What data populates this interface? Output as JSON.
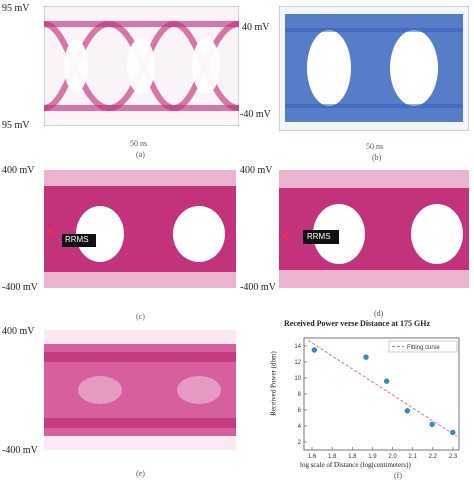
{
  "eye_diagrams": {
    "a": {
      "top_label": "95 mV",
      "bottom_label": "95 mV",
      "time_label": "50 ns",
      "panel_label": "(a)",
      "color": "#c2337b"
    },
    "b": {
      "top_label": "40 mV",
      "bottom_label": "-40 mV",
      "time_label": "50 ns",
      "panel_label": "(b)",
      "color": "#2f5fb8"
    },
    "c": {
      "top_label": "400 mV",
      "bottom_label": "-400 mV",
      "panel_label": "(c)",
      "marker": "RRMS",
      "color": "#c2337b"
    },
    "d": {
      "top_label": "400 mV",
      "bottom_label": "-400 mV",
      "panel_label": "(d)",
      "marker": "RRMS",
      "color": "#c2337b"
    },
    "e": {
      "top_label": "400 mV",
      "bottom_label": "-400 mV",
      "panel_label": "(e)",
      "color": "#c2337b"
    }
  },
  "chart_data": {
    "type": "scatter",
    "panel_label": "(f)",
    "title": "Received Power verse Distance at 175 GHz",
    "xlabel": "log scale of Distance (log(centimeters))",
    "ylabel": "Received Power (dbm)",
    "xlim": [
      1.55,
      2.3
    ],
    "ylim": [
      1,
      15
    ],
    "x_ticks": [
      "1.6",
      "1.8",
      "1.8",
      "1.9",
      "2.0",
      "2.1",
      "2.2",
      "2.3"
    ],
    "y_ticks": [
      "2",
      "4",
      "6",
      "8",
      "10",
      "12",
      "14"
    ],
    "series": [
      {
        "x": [
          1.6,
          1.85,
          1.95,
          2.05,
          2.17,
          2.27
        ],
        "y": [
          13.5,
          12.6,
          9.6,
          5.9,
          4.2,
          3.2
        ],
        "color": "#2c8fc9"
      }
    ],
    "fit": {
      "name": "Fitting curve",
      "x": [
        1.57,
        2.29
      ],
      "y": [
        14.7,
        2.7
      ],
      "color": "#d36a6a"
    },
    "legend_position": "top-right",
    "grid": false
  }
}
